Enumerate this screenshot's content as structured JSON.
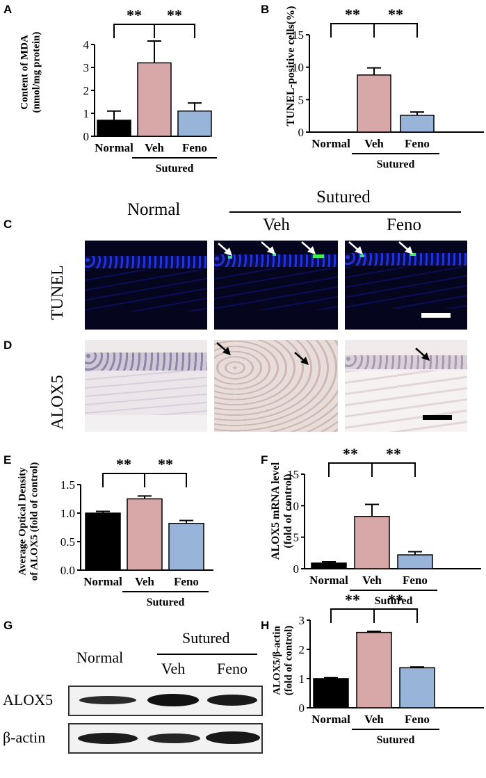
{
  "colors": {
    "normal": "#000000",
    "veh": "#d8a8a8",
    "feno": "#98b4d8"
  },
  "shared": {
    "normal": "Normal",
    "veh": "Veh",
    "feno": "Feno",
    "sutured": "Sutured",
    "sig": "**"
  },
  "panels": {
    "A": "A",
    "B": "B",
    "C": "C",
    "D": "D",
    "E": "E",
    "F": "F",
    "G": "G",
    "H": "H"
  },
  "images": {
    "header_normal": "Normal",
    "header_sutured": "Sutured",
    "header_veh": "Veh",
    "header_feno": "Feno",
    "row_tunel": "TUNEL",
    "row_alox5": "ALOX5",
    "arrow_icon": "arrow-icon",
    "scale_bar": "scale-bar"
  },
  "blot": {
    "header_normal": "Normal",
    "header_sutured": "Sutured",
    "header_veh": "Veh",
    "header_feno": "Feno",
    "row_alox5": "ALOX5",
    "row_actin": "β-actin"
  },
  "chart_data": [
    {
      "id": "A",
      "type": "bar",
      "categories": [
        "Normal",
        "Veh",
        "Feno"
      ],
      "values": [
        0.7,
        3.2,
        1.1
      ],
      "errors": [
        0.4,
        0.95,
        0.35
      ],
      "ylabel_line1": "Content of MDA",
      "ylabel_line2": "(nmol/mg protein)",
      "ylim": [
        0,
        4
      ],
      "yticks": [
        "0",
        "1",
        "2",
        "3",
        "4"
      ],
      "ytick_values": [
        0,
        1,
        2,
        3,
        4
      ],
      "group_label": "Sutured",
      "significance": [
        "**",
        "**"
      ]
    },
    {
      "id": "B",
      "type": "bar",
      "categories": [
        "Normal",
        "Veh",
        "Feno"
      ],
      "values": [
        0,
        8.8,
        2.6
      ],
      "errors": [
        0,
        1.1,
        0.5
      ],
      "ylabel_line1": "TUNEL-positive cells(%)",
      "ylabel_line2": "",
      "ylim": [
        0,
        15
      ],
      "yticks": [
        "0",
        "5",
        "10",
        "15"
      ],
      "ytick_values": [
        0,
        5,
        10,
        15
      ],
      "group_label": "Sutured",
      "significance": [
        "**",
        "**"
      ]
    },
    {
      "id": "E",
      "type": "bar",
      "categories": [
        "Normal",
        "Veh",
        "Feno"
      ],
      "values": [
        1.0,
        1.25,
        0.82
      ],
      "errors": [
        0.03,
        0.05,
        0.05
      ],
      "ylabel_line1": "Average Optical Density",
      "ylabel_line2": "of ALOX5 (fold of control)",
      "ylim": [
        0,
        1.5
      ],
      "yticks": [
        "0.0",
        "0.5",
        "1.0",
        "1.5"
      ],
      "ytick_values": [
        0,
        0.5,
        1.0,
        1.5
      ],
      "group_label": "Sutured",
      "significance": [
        "**",
        "**"
      ]
    },
    {
      "id": "F",
      "type": "bar",
      "categories": [
        "Normal",
        "Veh",
        "Feno"
      ],
      "values": [
        0.9,
        8.3,
        2.2
      ],
      "errors": [
        0.2,
        1.9,
        0.5
      ],
      "ylabel_line1": "ALOX5 mRNA level",
      "ylabel_line2": "(fold of control)",
      "ylim": [
        0,
        15
      ],
      "yticks": [
        "0",
        "5",
        "10",
        "15"
      ],
      "ytick_values": [
        0,
        5,
        10,
        15
      ],
      "group_label": "Sutured",
      "significance": [
        "**",
        "**"
      ]
    },
    {
      "id": "H",
      "type": "bar",
      "categories": [
        "Normal",
        "Veh",
        "Feno"
      ],
      "values": [
        1.0,
        2.58,
        1.37
      ],
      "errors": [
        0.03,
        0.04,
        0.03
      ],
      "ylabel_line1": "ALOX5/β-actin",
      "ylabel_line2": "(fold of control)",
      "ylim": [
        0,
        3
      ],
      "yticks": [
        "0",
        "1",
        "2",
        "3"
      ],
      "ytick_values": [
        0,
        1,
        2,
        3
      ],
      "group_label": "Sutured",
      "significance": [
        "**",
        "**"
      ]
    }
  ]
}
